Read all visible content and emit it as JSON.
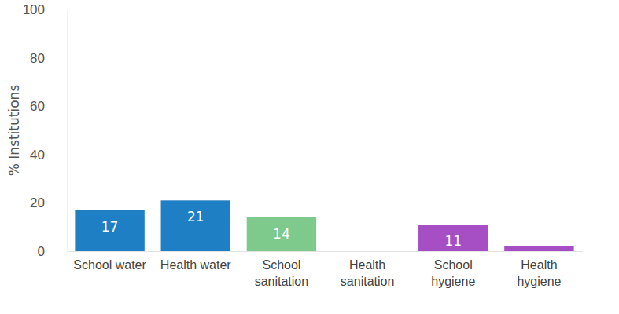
{
  "chart_data": {
    "type": "bar",
    "y_label": "% Institutions",
    "categories": [
      "School water",
      "Health water",
      "School sanitation",
      "Health sanitation",
      "School hygiene",
      "Health hygiene"
    ],
    "values": [
      17,
      21,
      14,
      null,
      11,
      2
    ],
    "value_labels": [
      "17",
      "21",
      "14",
      null,
      "11",
      null
    ],
    "colors": [
      "#1f7fc4",
      "#1f7fc4",
      "#7dca8c",
      "#7dca8c",
      "#a64fc5",
      "#a64fc5"
    ],
    "ylim": [
      0,
      100
    ],
    "yticks": [
      0,
      20,
      40,
      60,
      80,
      100
    ],
    "grid": false,
    "data_labels": true
  }
}
